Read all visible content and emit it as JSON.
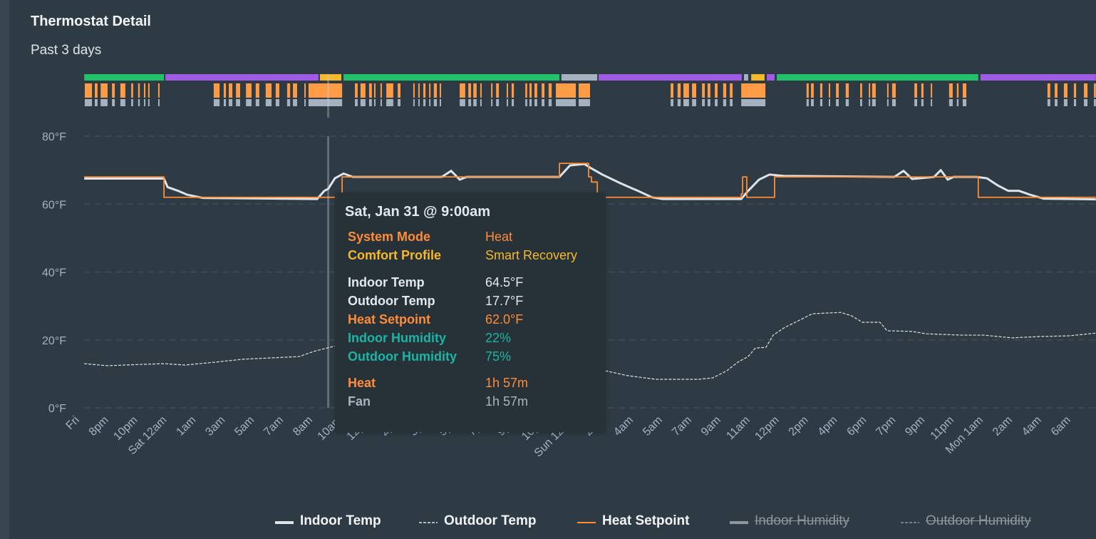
{
  "header": {
    "title": "Thermostat Detail",
    "subtitle": "Past 3 days"
  },
  "colors": {
    "indoor_temp": "#dde3e8",
    "outdoor_temp": "#dde3e8",
    "heat_setpoint": "#ff8c33",
    "heat_runtime": "#ff9a45",
    "fan_runtime": "#a7b2c0",
    "profile_green": "#21c06a",
    "profile_purple": "#a05be6",
    "profile_yellow": "#f6b92c",
    "profile_gray": "#a7b2c0",
    "label_orange": "#ff8c3a",
    "label_yellow": "#f5b82e",
    "label_teal": "#1bb5a5",
    "label_light": "#e3e8ee",
    "label_gray": "#aab4bf"
  },
  "chart_data": {
    "type": "line",
    "title": "Thermostat Detail",
    "subtitle": "Past 3 days",
    "x_range": [
      "Fri 18:22",
      "Mon 07:02"
    ],
    "ylim": [
      0,
      80
    ],
    "y_ticks": [
      "80°F",
      "60°F",
      "40°F",
      "20°F",
      "0°F"
    ],
    "y_tick_values": [
      80,
      60,
      40,
      20,
      0
    ],
    "grid": true,
    "legend_position": "bottom",
    "x_tick_labels": [
      "Fri",
      "8pm",
      "10pm",
      "Sat 12am",
      "1am",
      "3am",
      "5am",
      "7am",
      "8am",
      "10am",
      "12pm",
      "2pm",
      "3pm",
      "5pm",
      "7pm",
      "9pm",
      "10pm",
      "Sun 12am",
      "2am",
      "4am",
      "5am",
      "7am",
      "9am",
      "11am",
      "12pm",
      "2pm",
      "4pm",
      "6pm",
      "7pm",
      "9pm",
      "11pm",
      "Mon 1am",
      "2am",
      "4am",
      "6am"
    ],
    "series": [
      {
        "name": "Indoor Temp",
        "style": "solid-thick",
        "visible": true,
        "points": [
          [
            "Fri 18:22",
            67.5
          ],
          [
            "Fri 23:09",
            67.5
          ],
          [
            "Fri 23:22",
            65.0
          ],
          [
            "Sat 00:00",
            63.9
          ],
          [
            "Sat 00:31",
            62.8
          ],
          [
            "Sat 01:30",
            61.8
          ],
          [
            "Sat 08:20",
            61.5
          ],
          [
            "Sat 08:46",
            63.9
          ],
          [
            "Sat 09:00",
            64.5
          ],
          [
            "Sat 09:24",
            67.6
          ],
          [
            "Sat 09:55",
            69.0
          ],
          [
            "Sat 10:28",
            68.0
          ],
          [
            "Sat 15:49",
            68.0
          ],
          [
            "Sat 16:22",
            69.8
          ],
          [
            "Sat 16:53",
            67.2
          ],
          [
            "Sat 17:18",
            68.0
          ],
          [
            "Sat 22:52",
            68.0
          ],
          [
            "Sat 23:30",
            71.4
          ],
          [
            "Sun 00:22",
            71.8
          ],
          [
            "Sun 00:47",
            70.5
          ],
          [
            "Sun 01:26",
            68.7
          ],
          [
            "Sun 02:30",
            66.2
          ],
          [
            "Sun 03:34",
            63.9
          ],
          [
            "Sun 04:25",
            62.0
          ],
          [
            "Sun 05:04",
            61.5
          ],
          [
            "Sun 09:46",
            61.5
          ],
          [
            "Sun 10:11",
            63.9
          ],
          [
            "Sun 10:50",
            67.2
          ],
          [
            "Sun 11:28",
            68.7
          ],
          [
            "Sun 12:19",
            68.3
          ],
          [
            "Sun 18:57",
            68.0
          ],
          [
            "Sun 19:30",
            69.8
          ],
          [
            "Sun 20:01",
            67.4
          ],
          [
            "Sun 21:20",
            68.0
          ],
          [
            "Sun 21:44",
            70.0
          ],
          [
            "Sun 22:09",
            67.2
          ],
          [
            "Sun 22:30",
            68.0
          ],
          [
            "Sun 23:52",
            68.0
          ],
          [
            "Mon 00:30",
            67.6
          ],
          [
            "Mon 01:09",
            65.5
          ],
          [
            "Mon 01:47",
            63.9
          ],
          [
            "Mon 02:26",
            63.9
          ],
          [
            "Mon 03:04",
            62.8
          ],
          [
            "Mon 03:55",
            61.6
          ],
          [
            "Mon 07:02",
            61.4
          ]
        ]
      },
      {
        "name": "Outdoor Temp",
        "style": "dashed",
        "visible": true,
        "points": [
          [
            "Fri 18:22",
            13.0
          ],
          [
            "Fri 19:44",
            12.4
          ],
          [
            "Fri 21:52",
            12.8
          ],
          [
            "Fri 23:09",
            13.0
          ],
          [
            "Sat 00:25",
            12.6
          ],
          [
            "Sat 02:08",
            13.4
          ],
          [
            "Sat 03:51",
            14.3
          ],
          [
            "Sat 05:33",
            14.7
          ],
          [
            "Sat 07:16",
            15.1
          ],
          [
            "Sat 08:07",
            16.6
          ],
          [
            "Sat 09:00",
            17.7
          ],
          [
            "Sat 10:41",
            19.7
          ],
          [
            "Sat 14:57",
            18.9
          ],
          [
            "Sat 19:14",
            16.2
          ],
          [
            "Sat 23:30",
            12.6
          ],
          [
            "Sun 01:38",
            10.9
          ],
          [
            "Sun 02:55",
            9.5
          ],
          [
            "Sun 04:38",
            8.4
          ],
          [
            "Sun 07:12",
            8.4
          ],
          [
            "Sun 08:03",
            8.8
          ],
          [
            "Sun 08:54",
            10.9
          ],
          [
            "Sun 09:33",
            13.4
          ],
          [
            "Sun 10:11",
            15.1
          ],
          [
            "Sun 10:37",
            17.6
          ],
          [
            "Sun 11:15",
            17.8
          ],
          [
            "Sun 11:41",
            21.4
          ],
          [
            "Sun 12:19",
            23.5
          ],
          [
            "Sun 14:02",
            27.7
          ],
          [
            "Sun 15:44",
            28.1
          ],
          [
            "Sun 16:23",
            27.1
          ],
          [
            "Sun 17:02",
            25.2
          ],
          [
            "Sun 18:05",
            25.2
          ],
          [
            "Sun 18:31",
            22.7
          ],
          [
            "Sun 20:01",
            22.5
          ],
          [
            "Sun 20:52",
            21.8
          ],
          [
            "Sun 23:00",
            21.4
          ],
          [
            "Mon 00:20",
            21.4
          ],
          [
            "Mon 02:00",
            20.6
          ],
          [
            "Mon 03:43",
            21.0
          ],
          [
            "Mon 05:25",
            21.2
          ],
          [
            "Mon 07:02",
            22.0
          ]
        ]
      },
      {
        "name": "Heat Setpoint",
        "style": "step-thin",
        "visible": true,
        "points": [
          [
            "Fri 18:22",
            68
          ],
          [
            "Fri 23:09",
            62
          ],
          [
            "Sat 09:50",
            68
          ],
          [
            "Sat 22:52",
            72
          ],
          [
            "Sun 00:37",
            68
          ],
          [
            "Sun 00:47",
            66.5
          ],
          [
            "Sun 01:08",
            62
          ],
          [
            "Sun 09:46",
            63
          ],
          [
            "Sun 09:51",
            68
          ],
          [
            "Sun 10:06",
            62
          ],
          [
            "Sun 11:46",
            68
          ],
          [
            "Sun 23:59",
            62
          ],
          [
            "Mon 07:02",
            62
          ]
        ]
      },
      {
        "name": "Indoor Humidity",
        "style": "solid-thick",
        "visible": false,
        "points": []
      },
      {
        "name": "Outdoor Humidity",
        "style": "dashed",
        "visible": false,
        "points": []
      }
    ],
    "comfort_profile_timeline": [
      [
        "Fri 18:22",
        "Fri 23:09",
        "profile_green"
      ],
      [
        "Fri 23:14",
        "Sat 08:25",
        "profile_purple"
      ],
      [
        "Sat 08:30",
        "Sat 09:47",
        "profile_yellow"
      ],
      [
        "Sat 09:55",
        "Sat 22:52",
        "profile_green"
      ],
      [
        "Sat 22:59",
        "Sun 01:08",
        "profile_gray"
      ],
      [
        "Sun 01:13",
        "Sun 09:48",
        "profile_purple"
      ],
      [
        "Sun 09:56",
        "Sun 10:11",
        "profile_gray"
      ],
      [
        "Sun 10:22",
        "Sun 11:10",
        "profile_yellow"
      ],
      [
        "Sun 11:18",
        "Sun 11:46",
        "profile_purple"
      ],
      [
        "Sun 11:54",
        "Sun 23:59",
        "profile_green"
      ],
      [
        "Mon 00:07",
        "Mon 07:02",
        "profile_purple"
      ]
    ],
    "heat_runtime_intervals": [
      [
        "Fri 18:24",
        "Fri 18:50"
      ],
      [
        "Fri 19:00",
        "Fri 19:10"
      ],
      [
        "Fri 19:21",
        "Fri 19:46"
      ],
      [
        "Fri 20:02",
        "Fri 20:12"
      ],
      [
        "Fri 20:32",
        "Fri 20:50"
      ],
      [
        "Fri 21:11",
        "Fri 21:18"
      ],
      [
        "Fri 21:36",
        "Fri 21:42"
      ],
      [
        "Fri 21:57",
        "Fri 22:02"
      ],
      [
        "Fri 22:12",
        "Fri 22:17"
      ],
      [
        "Fri 22:48",
        "Fri 22:51"
      ],
      [
        "Sat 02:08",
        "Sat 02:29"
      ],
      [
        "Sat 02:44",
        "Sat 02:52"
      ],
      [
        "Sat 03:02",
        "Sat 03:15"
      ],
      [
        "Sat 03:28",
        "Sat 03:43"
      ],
      [
        "Sat 04:04",
        "Sat 04:24"
      ],
      [
        "Sat 04:39",
        "Sat 04:52"
      ],
      [
        "Sat 05:15",
        "Sat 05:36"
      ],
      [
        "Sat 05:51",
        "Sat 06:04"
      ],
      [
        "Sat 06:32",
        "Sat 06:43"
      ],
      [
        "Sat 06:53",
        "Sat 07:08"
      ],
      [
        "Sat 07:34",
        "Sat 07:36"
      ],
      [
        "Sat 07:49",
        "Sat 09:50"
      ],
      [
        "Sat 10:36",
        "Sat 10:46"
      ],
      [
        "Sat 10:56",
        "Sat 11:14"
      ],
      [
        "Sat 11:27",
        "Sat 11:37"
      ],
      [
        "Sat 11:45",
        "Sat 11:50"
      ],
      [
        "Sat 12:08",
        "Sat 12:13"
      ],
      [
        "Sat 12:29",
        "Sat 12:54"
      ],
      [
        "Sat 13:10",
        "Sat 13:20"
      ],
      [
        "Sat 14:06",
        "Sat 14:11"
      ],
      [
        "Sat 14:24",
        "Sat 14:29"
      ],
      [
        "Sat 14:42",
        "Sat 14:50"
      ],
      [
        "Sat 15:03",
        "Sat 15:08"
      ],
      [
        "Sat 15:20",
        "Sat 15:31"
      ],
      [
        "Sat 15:41",
        "Sat 15:46"
      ],
      [
        "Sat 16:53",
        "Sat 17:13"
      ],
      [
        "Sat 17:24",
        "Sat 17:34"
      ],
      [
        "Sat 17:42",
        "Sat 17:54"
      ],
      [
        "Sat 18:07",
        "Sat 18:12"
      ],
      [
        "Sat 18:46",
        "Sat 18:51"
      ],
      [
        "Sat 19:04",
        "Sat 19:14"
      ],
      [
        "Sat 19:42",
        "Sat 19:47"
      ],
      [
        "Sat 20:00",
        "Sat 20:08"
      ],
      [
        "Sat 20:49",
        "Sat 20:56"
      ],
      [
        "Sat 21:04",
        "Sat 21:12"
      ],
      [
        "Sat 21:22",
        "Sat 21:32"
      ],
      [
        "Sat 21:48",
        "Sat 21:58"
      ],
      [
        "Sat 22:13",
        "Sat 22:24"
      ],
      [
        "Sat 22:39",
        "Sat 23:51"
      ],
      [
        "Sun 00:01",
        "Sun 00:42"
      ],
      [
        "Sun 05:32",
        "Sun 05:42"
      ],
      [
        "Sun 05:57",
        "Sun 06:08"
      ],
      [
        "Sun 06:18",
        "Sun 06:38"
      ],
      [
        "Sun 06:49",
        "Sun 07:04"
      ],
      [
        "Sun 07:25",
        "Sun 07:35"
      ],
      [
        "Sun 07:45",
        "Sun 07:55"
      ],
      [
        "Sun 08:11",
        "Sun 08:21"
      ],
      [
        "Sun 08:41",
        "Sun 08:52"
      ],
      [
        "Sun 09:05",
        "Sun 09:15"
      ],
      [
        "Sun 09:46",
        "Sun 11:13"
      ],
      [
        "Sun 13:41",
        "Sun 13:49"
      ],
      [
        "Sun 13:57",
        "Sun 14:07"
      ],
      [
        "Sun 14:30",
        "Sun 14:38"
      ],
      [
        "Sun 15:01",
        "Sun 15:06"
      ],
      [
        "Sun 15:27",
        "Sun 15:37"
      ],
      [
        "Sun 16:02",
        "Sun 16:13"
      ],
      [
        "Sun 16:54",
        "Sun 17:01"
      ],
      [
        "Sun 17:25",
        "Sun 17:30"
      ],
      [
        "Sun 17:37",
        "Sun 17:50"
      ],
      [
        "Sun 18:31",
        "Sun 18:36"
      ],
      [
        "Sun 18:49",
        "Sun 19:02"
      ],
      [
        "Sun 20:09",
        "Sun 20:19"
      ],
      [
        "Sun 20:34",
        "Sun 20:42"
      ],
      [
        "Sun 21:08",
        "Sun 21:13"
      ],
      [
        "Sun 22:14",
        "Sun 22:27"
      ],
      [
        "Sun 22:42",
        "Sun 22:48"
      ],
      [
        "Sun 23:03",
        "Sun 23:16"
      ],
      [
        "Mon 04:08",
        "Mon 04:18"
      ],
      [
        "Mon 04:34",
        "Mon 04:44"
      ],
      [
        "Mon 05:07",
        "Mon 05:20"
      ],
      [
        "Mon 05:43",
        "Mon 05:51"
      ],
      [
        "Mon 06:19",
        "Mon 06:32"
      ],
      [
        "Mon 06:55",
        "Mon 07:02"
      ]
    ],
    "fan_runtime_same_as_heat": true,
    "cursor_time": "Sat 09:00"
  },
  "tooltip": {
    "title": "Sat, Jan 31 @ 9:00am",
    "rows": [
      {
        "label": "System Mode",
        "value": "Heat",
        "color": "label_orange"
      },
      {
        "label": "Comfort Profile",
        "value": "Smart Recovery",
        "color": "label_yellow"
      },
      {
        "label": "Indoor Temp",
        "value": "64.5°F",
        "color": "label_light"
      },
      {
        "label": "Outdoor Temp",
        "value": "17.7°F",
        "color": "label_light"
      },
      {
        "label": "Heat Setpoint",
        "value": "62.0°F",
        "color": "label_orange"
      },
      {
        "label": "Indoor Humidity",
        "value": "22%",
        "color": "label_teal"
      },
      {
        "label": "Outdoor Humidity",
        "value": "75%",
        "color": "label_teal"
      },
      {
        "label": "Heat",
        "value": "1h 57m",
        "color": "label_orange"
      },
      {
        "label": "Fan",
        "value": "1h 57m",
        "color": "label_gray"
      }
    ]
  },
  "legend": [
    {
      "label": "Indoor Temp",
      "enabled": true
    },
    {
      "label": "Outdoor Temp",
      "enabled": true
    },
    {
      "label": "Heat Setpoint",
      "enabled": true
    },
    {
      "label": "Indoor Humidity",
      "enabled": false
    },
    {
      "label": "Outdoor Humidity",
      "enabled": false
    }
  ]
}
